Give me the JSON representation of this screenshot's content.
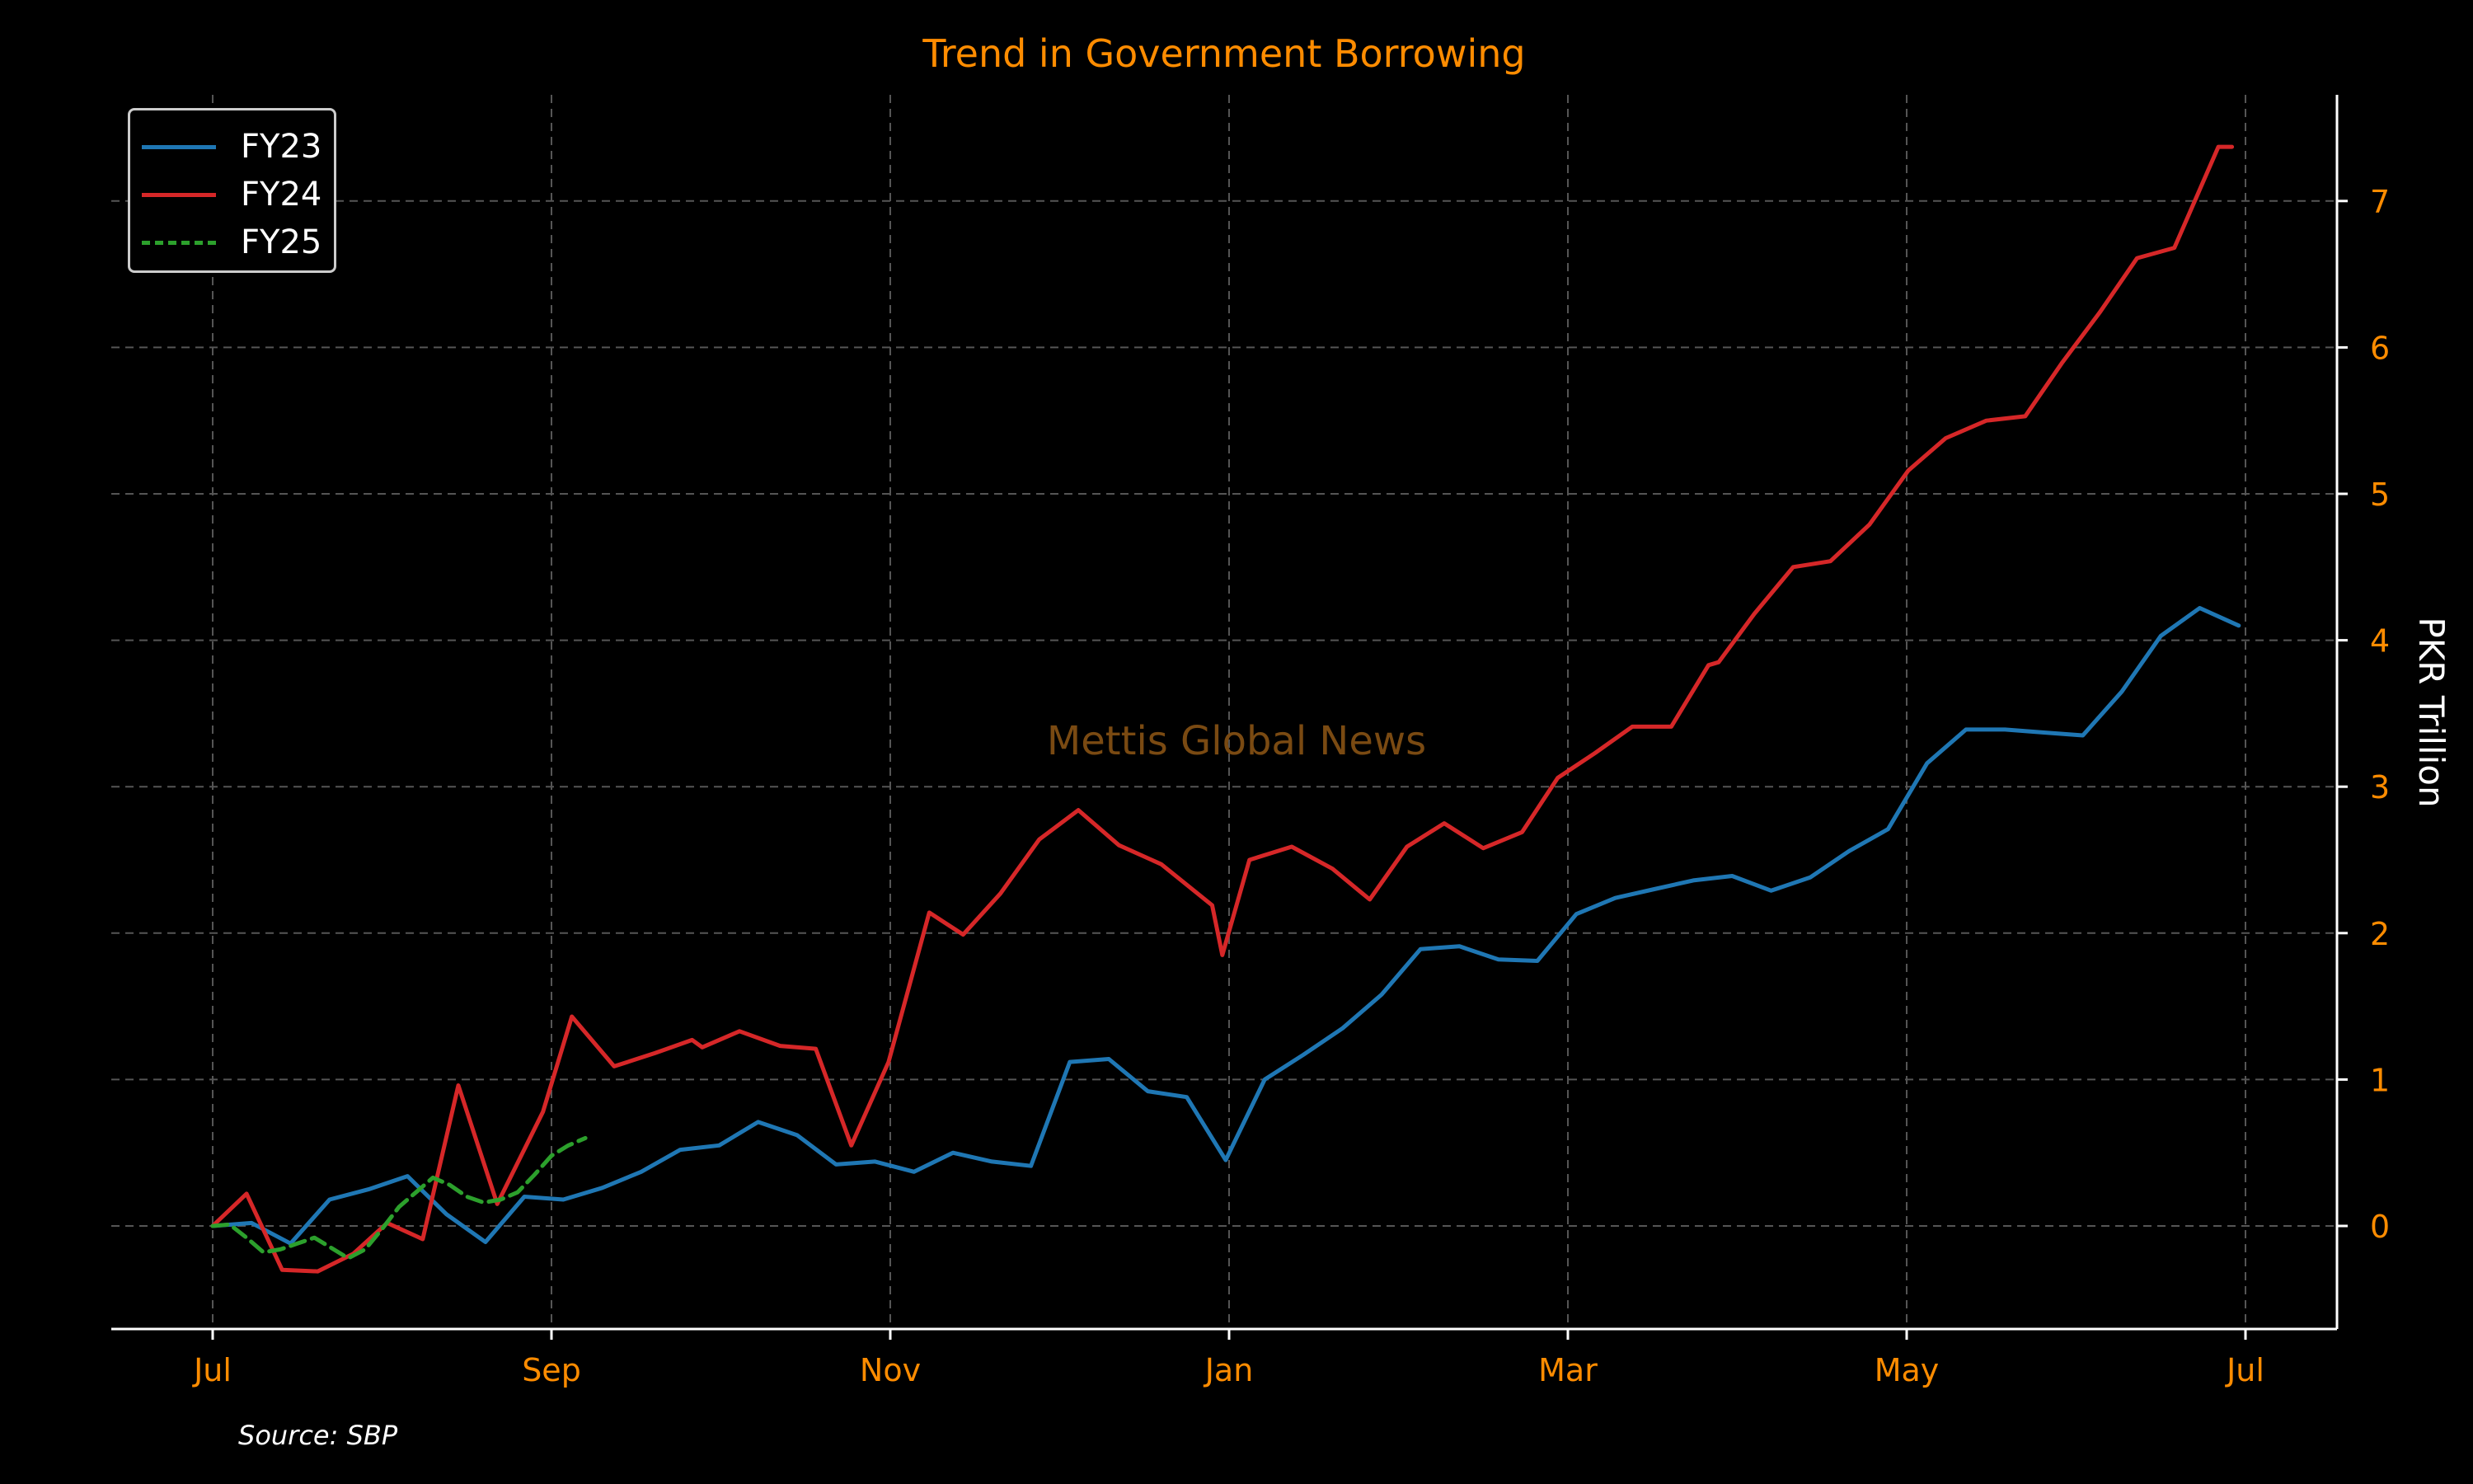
{
  "title": "Trend in Government Borrowing",
  "source": "Source: SBP",
  "watermark": "Mettis Global News",
  "colors": {
    "background": "#000000",
    "accent": "#ff8c00",
    "grid": "#555555",
    "watermark": "#7a4a12",
    "axis_line": "#ffffff"
  },
  "chart_data": {
    "type": "line",
    "title": "Trend in Government Borrowing",
    "ylabel": "PKR Trillion",
    "xlabel": "",
    "xlim": [
      0,
      12.6
    ],
    "ylim": [
      -0.7,
      7.8
    ],
    "x_ticks": [
      {
        "pos": 0,
        "label": "Jul"
      },
      {
        "pos": 2,
        "label": "Sep"
      },
      {
        "pos": 4,
        "label": "Nov"
      },
      {
        "pos": 6,
        "label": "Jan"
      },
      {
        "pos": 8,
        "label": "Mar"
      },
      {
        "pos": 10,
        "label": "May"
      },
      {
        "pos": 12,
        "label": "Jul"
      }
    ],
    "y_ticks": [
      0,
      1,
      2,
      3,
      4,
      5,
      6,
      7
    ],
    "y_axis_side": "right",
    "grid": true,
    "legend_position": "top-left",
    "series": [
      {
        "name": "FY23",
        "color": "#1f77b4",
        "dash": "solid",
        "points": [
          [
            0,
            0
          ],
          [
            0.23,
            0.02
          ],
          [
            0.46,
            -0.12
          ],
          [
            0.69,
            0.18
          ],
          [
            0.92,
            0.25
          ],
          [
            1.15,
            0.34
          ],
          [
            1.38,
            0.08
          ],
          [
            1.61,
            -0.11
          ],
          [
            1.84,
            0.2
          ],
          [
            2.07,
            0.18
          ],
          [
            2.3,
            0.26
          ],
          [
            2.53,
            0.37
          ],
          [
            2.76,
            0.52
          ],
          [
            2.99,
            0.55
          ],
          [
            3.22,
            0.71
          ],
          [
            3.45,
            0.62
          ],
          [
            3.68,
            0.42
          ],
          [
            3.91,
            0.44
          ],
          [
            4.14,
            0.37
          ],
          [
            4.37,
            0.5
          ],
          [
            4.6,
            0.44
          ],
          [
            4.83,
            0.41
          ],
          [
            5.06,
            1.12
          ],
          [
            5.29,
            1.14
          ],
          [
            5.52,
            0.92
          ],
          [
            5.75,
            0.88
          ],
          [
            5.98,
            0.45
          ],
          [
            6.21,
            1.0
          ],
          [
            6.44,
            1.17
          ],
          [
            6.67,
            1.35
          ],
          [
            6.9,
            1.58
          ],
          [
            7.13,
            1.89
          ],
          [
            7.36,
            1.91
          ],
          [
            7.59,
            1.82
          ],
          [
            7.82,
            1.81
          ],
          [
            8.05,
            2.13
          ],
          [
            8.28,
            2.24
          ],
          [
            8.51,
            2.3
          ],
          [
            8.74,
            2.36
          ],
          [
            8.97,
            2.39
          ],
          [
            9.2,
            2.29
          ],
          [
            9.43,
            2.38
          ],
          [
            9.66,
            2.56
          ],
          [
            9.89,
            2.71
          ],
          [
            10.12,
            3.16
          ],
          [
            10.35,
            3.39
          ],
          [
            10.58,
            3.39
          ],
          [
            10.81,
            3.37
          ],
          [
            11.04,
            3.35
          ],
          [
            11.27,
            3.65
          ],
          [
            11.5,
            4.03
          ],
          [
            11.73,
            4.22
          ],
          [
            11.96,
            4.1
          ]
        ]
      },
      {
        "name": "FY24",
        "color": "#d62728",
        "dash": "solid",
        "points": [
          [
            0,
            0
          ],
          [
            0.2,
            0.22
          ],
          [
            0.41,
            -0.3
          ],
          [
            0.62,
            -0.31
          ],
          [
            0.83,
            -0.19
          ],
          [
            1.03,
            0.02
          ],
          [
            1.24,
            -0.09
          ],
          [
            1.45,
            0.96
          ],
          [
            1.68,
            0.15
          ],
          [
            1.95,
            0.78
          ],
          [
            2.12,
            1.43
          ],
          [
            2.37,
            1.09
          ],
          [
            2.61,
            1.18
          ],
          [
            2.83,
            1.27
          ],
          [
            2.89,
            1.22
          ],
          [
            3.11,
            1.33
          ],
          [
            3.35,
            1.23
          ],
          [
            3.56,
            1.21
          ],
          [
            3.77,
            0.55
          ],
          [
            3.99,
            1.12
          ],
          [
            4.23,
            2.14
          ],
          [
            4.43,
            1.99
          ],
          [
            4.65,
            2.27
          ],
          [
            4.88,
            2.64
          ],
          [
            5.11,
            2.84
          ],
          [
            5.35,
            2.6
          ],
          [
            5.6,
            2.47
          ],
          [
            5.9,
            2.19
          ],
          [
            5.96,
            1.85
          ],
          [
            6.12,
            2.5
          ],
          [
            6.37,
            2.59
          ],
          [
            6.61,
            2.44
          ],
          [
            6.83,
            2.23
          ],
          [
            7.05,
            2.59
          ],
          [
            7.27,
            2.75
          ],
          [
            7.5,
            2.58
          ],
          [
            7.73,
            2.69
          ],
          [
            7.94,
            3.06
          ],
          [
            8.16,
            3.23
          ],
          [
            8.38,
            3.41
          ],
          [
            8.61,
            3.41
          ],
          [
            8.83,
            3.83
          ],
          [
            8.89,
            3.85
          ],
          [
            9.1,
            4.18
          ],
          [
            9.33,
            4.5
          ],
          [
            9.55,
            4.54
          ],
          [
            9.78,
            4.79
          ],
          [
            10.01,
            5.16
          ],
          [
            10.23,
            5.38
          ],
          [
            10.47,
            5.5
          ],
          [
            10.7,
            5.53
          ],
          [
            10.92,
            5.9
          ],
          [
            11.14,
            6.24
          ],
          [
            11.36,
            6.61
          ],
          [
            11.58,
            6.68
          ],
          [
            11.84,
            7.37
          ],
          [
            11.92,
            7.37
          ]
        ]
      },
      {
        "name": "FY25",
        "color": "#2ca02c",
        "dash": "dashed",
        "points": [
          [
            0,
            0
          ],
          [
            0.1,
            0.01
          ],
          [
            0.2,
            -0.08
          ],
          [
            0.3,
            -0.18
          ],
          [
            0.4,
            -0.16
          ],
          [
            0.5,
            -0.12
          ],
          [
            0.6,
            -0.08
          ],
          [
            0.7,
            -0.15
          ],
          [
            0.8,
            -0.22
          ],
          [
            0.9,
            -0.16
          ],
          [
            1.0,
            -0.02
          ],
          [
            1.1,
            0.13
          ],
          [
            1.2,
            0.23
          ],
          [
            1.3,
            0.33
          ],
          [
            1.4,
            0.28
          ],
          [
            1.5,
            0.2
          ],
          [
            1.6,
            0.16
          ],
          [
            1.7,
            0.18
          ],
          [
            1.8,
            0.23
          ],
          [
            1.9,
            0.35
          ],
          [
            2.0,
            0.48
          ],
          [
            2.1,
            0.55
          ],
          [
            2.2,
            0.6
          ]
        ]
      }
    ]
  }
}
